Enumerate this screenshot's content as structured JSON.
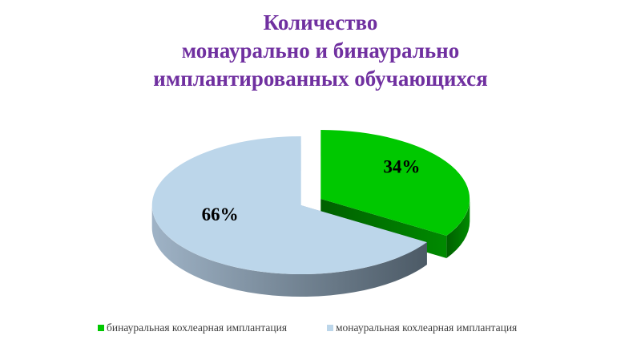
{
  "chart_data": {
    "type": "pie3d",
    "title": [
      "Количество",
      "монаурально и бинаурально",
      "имплантированных обучающихся"
    ],
    "categories": [
      "бинауральная кохлеарная имплантация",
      "монауральная кохлеарная имплантация"
    ],
    "values": [
      34,
      66
    ],
    "value_labels": [
      "34%",
      "66%"
    ],
    "colors": [
      "#00c800",
      "#bcd6ea"
    ],
    "legend": "bottom"
  }
}
